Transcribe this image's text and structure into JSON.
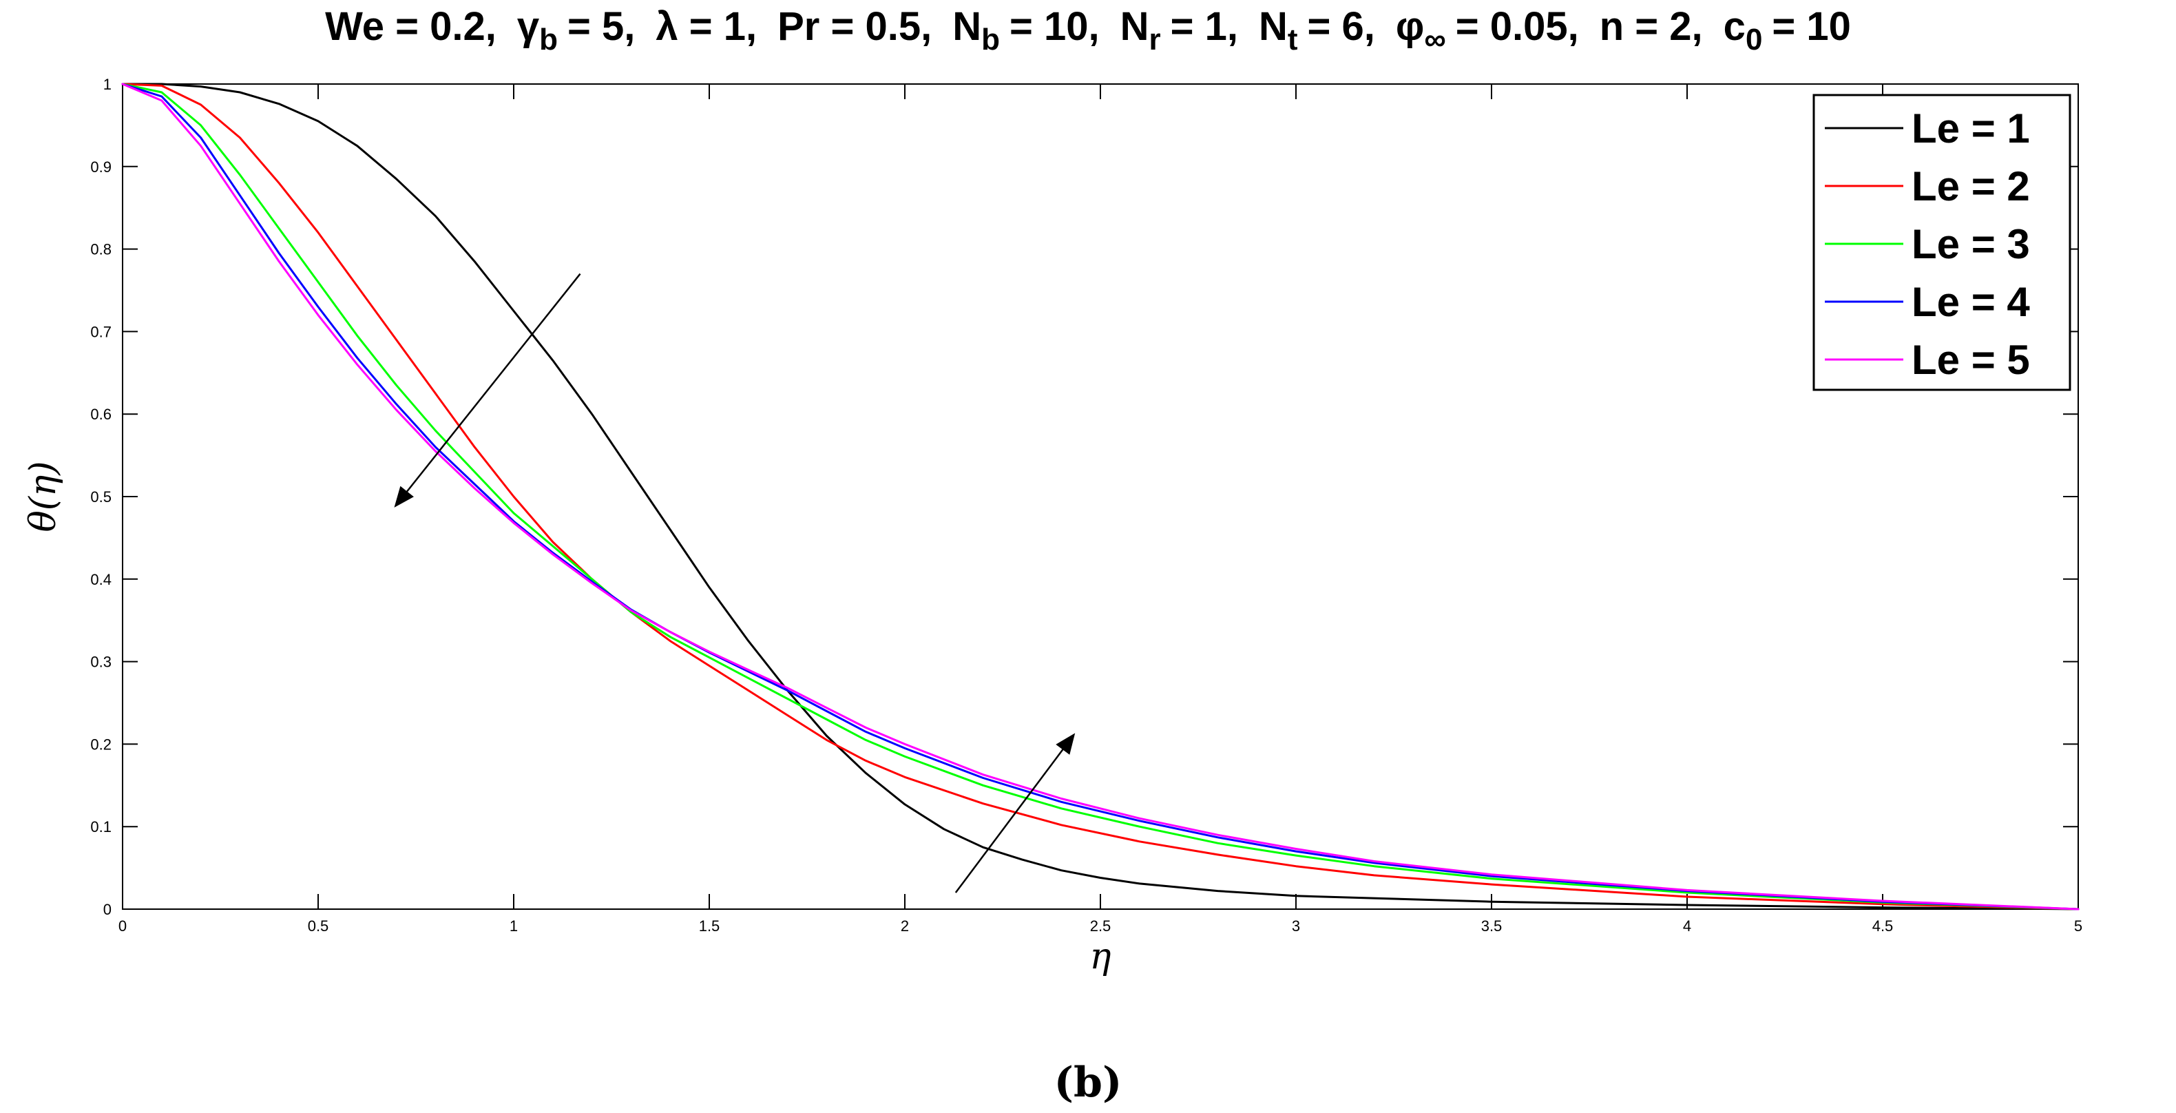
{
  "title_parts": {
    "we": "We = 0.2,",
    "gamma_sym": "γ",
    "gamma_sub": "b",
    "gamma_val": "= 5,",
    "lambda": "λ = 1,",
    "pr": "Pr = 0.5,",
    "nb_sym": "N",
    "nb_sub": "b",
    "nb_val": "= 10,",
    "nr_sym": "N",
    "nr_sub": "r",
    "nr_val": "= 1,",
    "nt_sym": "N",
    "nt_sub": "t",
    "nt_val": "= 6,",
    "phi_sym": "φ",
    "phi_sub": "∞",
    "phi_val": "= 0.05,",
    "n": "n = 2,",
    "c_sym": "c",
    "c_sub": "0",
    "c_val": "= 10"
  },
  "caption": "(b)",
  "chart_data": {
    "type": "line",
    "xlabel": "η",
    "ylabel": "θ(η)",
    "xlim": [
      0,
      5
    ],
    "ylim": [
      0,
      1
    ],
    "xticks": [
      "0",
      "0.5",
      "1",
      "1.5",
      "2",
      "2.5",
      "3",
      "3.5",
      "4",
      "4.5",
      "5"
    ],
    "yticks": [
      "0",
      "0.1",
      "0.2",
      "0.3",
      "0.4",
      "0.5",
      "0.6",
      "0.7",
      "0.8",
      "0.9",
      "1"
    ],
    "grid": false,
    "legend_position": "top-right",
    "series": [
      {
        "name": "Le = 1",
        "color": "#000000",
        "x": [
          0,
          0.1,
          0.2,
          0.3,
          0.4,
          0.5,
          0.6,
          0.7,
          0.8,
          0.9,
          1.0,
          1.1,
          1.2,
          1.3,
          1.4,
          1.5,
          1.6,
          1.7,
          1.8,
          1.9,
          2.0,
          2.1,
          2.2,
          2.3,
          2.4,
          2.5,
          2.6,
          2.8,
          3.0,
          3.5,
          4.0,
          4.5,
          5.0
        ],
        "y": [
          1.0,
          1.0,
          0.997,
          0.99,
          0.976,
          0.955,
          0.925,
          0.885,
          0.84,
          0.785,
          0.725,
          0.665,
          0.6,
          0.53,
          0.46,
          0.39,
          0.325,
          0.265,
          0.21,
          0.165,
          0.127,
          0.097,
          0.075,
          0.06,
          0.047,
          0.038,
          0.031,
          0.022,
          0.016,
          0.009,
          0.005,
          0.002,
          0.0
        ]
      },
      {
        "name": "Le = 2",
        "color": "#ff0000",
        "x": [
          0,
          0.1,
          0.2,
          0.3,
          0.4,
          0.5,
          0.6,
          0.7,
          0.8,
          0.9,
          1.0,
          1.1,
          1.2,
          1.3,
          1.4,
          1.5,
          1.6,
          1.7,
          1.8,
          1.9,
          2.0,
          2.2,
          2.4,
          2.6,
          2.8,
          3.0,
          3.2,
          3.5,
          4.0,
          4.5,
          5.0
        ],
        "y": [
          1.0,
          0.998,
          0.975,
          0.935,
          0.88,
          0.82,
          0.755,
          0.69,
          0.625,
          0.56,
          0.5,
          0.445,
          0.4,
          0.36,
          0.325,
          0.295,
          0.265,
          0.235,
          0.205,
          0.18,
          0.16,
          0.128,
          0.102,
          0.082,
          0.066,
          0.052,
          0.041,
          0.03,
          0.015,
          0.006,
          0.0
        ]
      },
      {
        "name": "Le = 3",
        "color": "#00ff00",
        "x": [
          0,
          0.1,
          0.2,
          0.3,
          0.4,
          0.5,
          0.6,
          0.7,
          0.8,
          0.9,
          1.0,
          1.1,
          1.2,
          1.3,
          1.4,
          1.5,
          1.6,
          1.7,
          1.8,
          1.9,
          2.0,
          2.2,
          2.4,
          2.6,
          2.8,
          3.0,
          3.2,
          3.5,
          4.0,
          4.5,
          5.0
        ],
        "y": [
          1.0,
          0.99,
          0.95,
          0.89,
          0.825,
          0.76,
          0.695,
          0.635,
          0.58,
          0.53,
          0.48,
          0.44,
          0.4,
          0.36,
          0.33,
          0.305,
          0.28,
          0.255,
          0.23,
          0.205,
          0.185,
          0.15,
          0.122,
          0.1,
          0.08,
          0.065,
          0.052,
          0.037,
          0.02,
          0.008,
          0.0
        ]
      },
      {
        "name": "Le = 4",
        "color": "#0000ff",
        "x": [
          0,
          0.1,
          0.2,
          0.3,
          0.4,
          0.5,
          0.6,
          0.7,
          0.8,
          0.9,
          1.0,
          1.1,
          1.2,
          1.3,
          1.4,
          1.5,
          1.6,
          1.7,
          1.8,
          1.9,
          2.0,
          2.2,
          2.4,
          2.6,
          2.8,
          3.0,
          3.2,
          3.5,
          4.0,
          4.5,
          5.0
        ],
        "y": [
          1.0,
          0.985,
          0.935,
          0.865,
          0.795,
          0.73,
          0.668,
          0.612,
          0.56,
          0.515,
          0.47,
          0.432,
          0.397,
          0.363,
          0.336,
          0.311,
          0.288,
          0.265,
          0.24,
          0.215,
          0.195,
          0.159,
          0.13,
          0.107,
          0.087,
          0.07,
          0.056,
          0.04,
          0.022,
          0.009,
          0.0
        ]
      },
      {
        "name": "Le = 5",
        "color": "#ff00ff",
        "x": [
          0,
          0.1,
          0.2,
          0.3,
          0.4,
          0.5,
          0.6,
          0.7,
          0.8,
          0.9,
          1.0,
          1.1,
          1.2,
          1.3,
          1.4,
          1.5,
          1.6,
          1.7,
          1.8,
          1.9,
          2.0,
          2.2,
          2.4,
          2.6,
          2.8,
          3.0,
          3.2,
          3.5,
          4.0,
          4.5,
          5.0
        ],
        "y": [
          1.0,
          0.98,
          0.925,
          0.855,
          0.785,
          0.72,
          0.66,
          0.605,
          0.555,
          0.51,
          0.468,
          0.43,
          0.395,
          0.362,
          0.336,
          0.312,
          0.29,
          0.268,
          0.244,
          0.22,
          0.2,
          0.163,
          0.134,
          0.11,
          0.09,
          0.073,
          0.058,
          0.042,
          0.023,
          0.01,
          0.0
        ]
      }
    ],
    "annotations": [
      {
        "type": "arrow",
        "from": [
          1.17,
          0.77
        ],
        "to": [
          0.7,
          0.49
        ]
      },
      {
        "type": "arrow",
        "from": [
          2.13,
          0.02
        ],
        "to": [
          2.43,
          0.21
        ]
      }
    ]
  }
}
